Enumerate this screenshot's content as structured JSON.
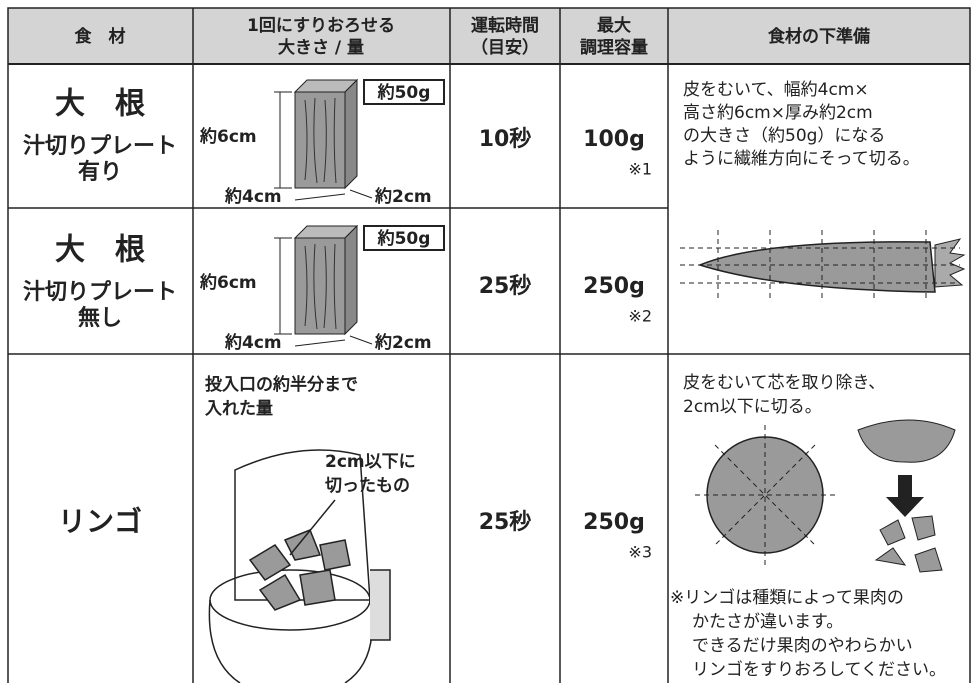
{
  "header": {
    "columns": [
      [
        "食　材"
      ],
      [
        "1回にすりおろせる",
        "大きさ / 量"
      ],
      [
        "運転時間",
        "（目安）"
      ],
      [
        "最大",
        "調理容量"
      ],
      [
        "食材の下準備"
      ]
    ]
  },
  "rows": [
    {
      "food": "大　根",
      "plate": "汁切りプレート",
      "plate_state": "有り",
      "size_labels": {
        "height": "約6cm",
        "weight": "約50g",
        "width": "約4cm",
        "depth": "約2cm"
      },
      "time": "10秒",
      "capacity": "100g",
      "footnote": "※1"
    },
    {
      "food": "大　根",
      "plate": "汁切りプレート",
      "plate_state": "無し",
      "size_labels": {
        "height": "約6cm",
        "weight": "約50g",
        "width": "約4cm",
        "depth": "約2cm"
      },
      "time": "25秒",
      "capacity": "250g",
      "footnote": "※2"
    },
    {
      "food": "リンゴ",
      "amount": [
        "投入口の約半分まで",
        "入れた量"
      ],
      "callout": [
        "2cm以下に",
        "切ったもの"
      ],
      "time": "25秒",
      "capacity": "250g",
      "footnote": "※3"
    }
  ],
  "prep": {
    "radish": [
      "皮をむいて、幅約4cm×",
      "高さ約6cm×厚み約2cm",
      "の大きさ（約50g）になる",
      "ように繊維方向にそって切る。"
    ],
    "apple": [
      "皮をむいて芯を取り除き、",
      "2cm以下に切る。"
    ],
    "apple_note": [
      "※リンゴは種類によって果肉の",
      "かたさが違います。",
      "できるだけ果肉のやわらかい",
      "リンゴをすりおろしてください。"
    ]
  }
}
